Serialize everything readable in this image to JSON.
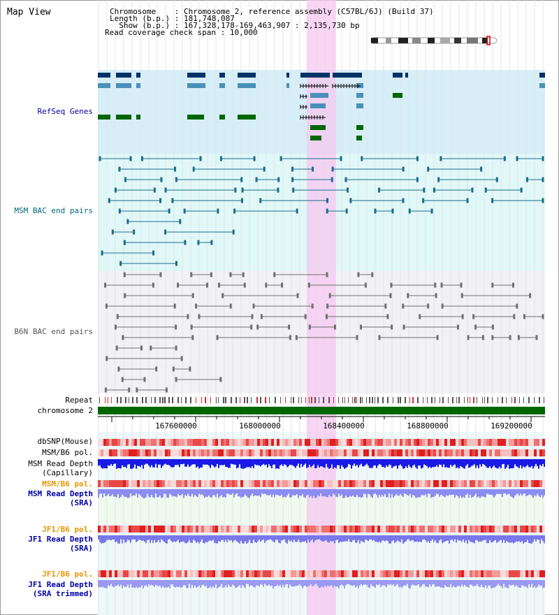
{
  "title": "Map View",
  "info": {
    "chromosome_key": "Chromosome    ",
    "chromosome_val": ": Chromosome 2, reference assembly (C57BL/6J) (Build 37)",
    "length_key": "Length (b.p.) ",
    "length_val": ": 181,748,087",
    "show_key": "  Show (b.p.) ",
    "show_val": ": 167,328,178-169,463,907 : 2,135,730 bp",
    "coverage_key": "Read coverage check span ",
    "coverage_val": ": 10,000"
  },
  "tracks": {
    "refseq": "RefSeq Genes",
    "msm_bac": "MSM BAC end pairs",
    "b6n_bac": "B6N BAC end pairs",
    "repeat": "Repeat",
    "chromosome": "chromosome 2",
    "dbsnp": "dbSNP(Mouse)",
    "msm_pol1": "MSM/B6 pol.",
    "msm_depth_cap_1": "MSM Read Depth",
    "msm_depth_cap_2": "(Capillary)",
    "msm_pol2": "MSM/B6 pol.",
    "msm_depth_sra_1": "MSM Read Depth",
    "msm_depth_sra_2": "(SRA)",
    "jf1_pol1": "JF1/B6 pol.",
    "jf1_depth_sra_1": "JF1 Read Depth",
    "jf1_depth_sra_2": "(SRA)",
    "jf1_pol2": "JF1/B6 pol.",
    "jf1_depth_trim_1": "JF1 Read Depth",
    "jf1_depth_trim_2": "(SRA trimmed)"
  },
  "axis": {
    "ticks": [
      "167600000",
      "168000000",
      "168400000",
      "168800000",
      "169200000"
    ]
  },
  "colors": {
    "label_blue": "#0000aa",
    "label_teal": "#006677",
    "label_gray": "#555555",
    "label_orange": "#e69500",
    "highlight": "#f5c8f0",
    "refseq_bg": "#d6eef8",
    "msm_bg": "#e0f8f8",
    "b6n_bg": "#f2f2f6",
    "gene_dark": "#003366",
    "gene_mid": "#4a90b8",
    "gene_green": "#006600"
  }
}
